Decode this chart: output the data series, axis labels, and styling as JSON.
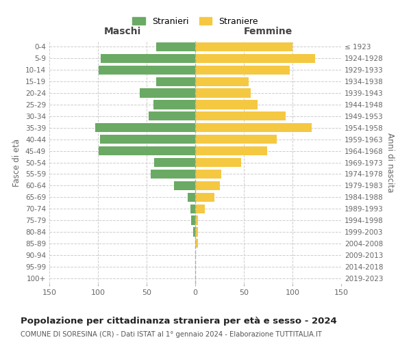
{
  "age_groups": [
    "0-4",
    "5-9",
    "10-14",
    "15-19",
    "20-24",
    "25-29",
    "30-34",
    "35-39",
    "40-44",
    "45-49",
    "50-54",
    "55-59",
    "60-64",
    "65-69",
    "70-74",
    "75-79",
    "80-84",
    "85-89",
    "90-94",
    "95-99",
    "100+"
  ],
  "birth_years": [
    "2019-2023",
    "2014-2018",
    "2009-2013",
    "2004-2008",
    "1999-2003",
    "1994-1998",
    "1989-1993",
    "1984-1988",
    "1979-1983",
    "1974-1978",
    "1969-1973",
    "1964-1968",
    "1959-1963",
    "1954-1958",
    "1949-1953",
    "1944-1948",
    "1939-1943",
    "1934-1938",
    "1929-1933",
    "1924-1928",
    "≤ 1923"
  ],
  "maschi": [
    40,
    97,
    99,
    40,
    57,
    43,
    48,
    103,
    98,
    99,
    42,
    46,
    22,
    8,
    5,
    4,
    2,
    0,
    0,
    0,
    0
  ],
  "femmine": [
    100,
    123,
    97,
    55,
    57,
    64,
    93,
    120,
    84,
    74,
    47,
    27,
    25,
    20,
    10,
    3,
    3,
    3,
    0,
    0,
    0
  ],
  "color_maschi": "#6aaa64",
  "color_femmine": "#f5c842",
  "title": "Popolazione per cittadinanza straniera per età e sesso - 2024",
  "subtitle": "COMUNE DI SORESINA (CR) - Dati ISTAT al 1° gennaio 2024 - Elaborazione TUTTITALIA.IT",
  "xlabel_left": "Maschi",
  "xlabel_right": "Femmine",
  "ylabel_left": "Fasce di età",
  "ylabel_right": "Anni di nascita",
  "legend_maschi": "Stranieri",
  "legend_femmine": "Straniere",
  "xlim": 150
}
